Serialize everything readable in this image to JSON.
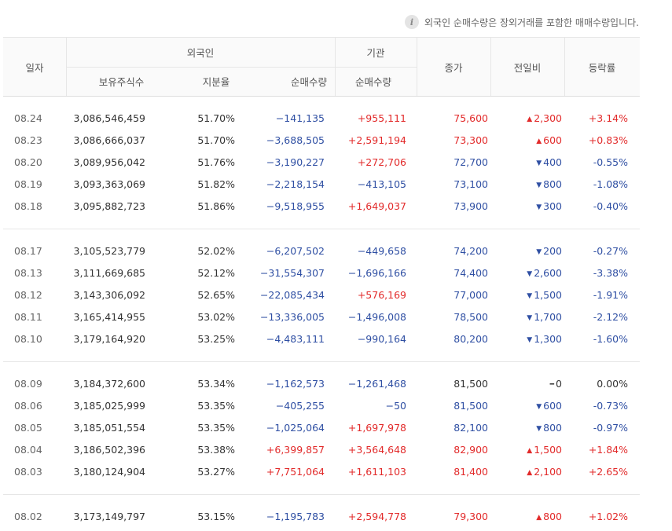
{
  "notice": {
    "icon": "info-icon",
    "text": "외국인 순매수량은 장외거래를 포함한 매매수량입니다."
  },
  "header": {
    "date": "일자",
    "foreign": "외국인",
    "institution": "기관",
    "holdings": "보유주식수",
    "ratio": "지분율",
    "foreign_net": "순매수량",
    "inst_net": "순매수량",
    "close": "종가",
    "change": "전일비",
    "rate": "등락률"
  },
  "colors": {
    "up": "#e22a2a",
    "down": "#2f4fa3",
    "flat": "#333333"
  },
  "rows": [
    {
      "date": "08.24",
      "holdings": "3,086,546,459",
      "ratio": "51.70%",
      "foreign_net": "−141,135",
      "foreign_dir": "down",
      "inst_net": "+955,111",
      "inst_dir": "up",
      "close": "75,600",
      "close_dir": "up",
      "arrow": "▲",
      "change": "2,300",
      "change_dir": "up",
      "rate": "+3.14%",
      "rate_dir": "up"
    },
    {
      "date": "08.23",
      "holdings": "3,086,666,037",
      "ratio": "51.70%",
      "foreign_net": "−3,688,505",
      "foreign_dir": "down",
      "inst_net": "+2,591,194",
      "inst_dir": "up",
      "close": "73,300",
      "close_dir": "up",
      "arrow": "▲",
      "change": "600",
      "change_dir": "up",
      "rate": "+0.83%",
      "rate_dir": "up"
    },
    {
      "date": "08.20",
      "holdings": "3,089,956,042",
      "ratio": "51.76%",
      "foreign_net": "−3,190,227",
      "foreign_dir": "down",
      "inst_net": "+272,706",
      "inst_dir": "up",
      "close": "72,700",
      "close_dir": "down",
      "arrow": "▼",
      "change": "400",
      "change_dir": "down",
      "rate": "-0.55%",
      "rate_dir": "down"
    },
    {
      "date": "08.19",
      "holdings": "3,093,363,069",
      "ratio": "51.82%",
      "foreign_net": "−2,218,154",
      "foreign_dir": "down",
      "inst_net": "−413,105",
      "inst_dir": "down",
      "close": "73,100",
      "close_dir": "down",
      "arrow": "▼",
      "change": "800",
      "change_dir": "down",
      "rate": "-1.08%",
      "rate_dir": "down"
    },
    {
      "date": "08.18",
      "holdings": "3,095,882,723",
      "ratio": "51.86%",
      "foreign_net": "−9,518,955",
      "foreign_dir": "down",
      "inst_net": "+1,649,037",
      "inst_dir": "up",
      "close": "73,900",
      "close_dir": "down",
      "arrow": "▼",
      "change": "300",
      "change_dir": "down",
      "rate": "-0.40%",
      "rate_dir": "down"
    },
    {
      "date": "08.17",
      "holdings": "3,105,523,779",
      "ratio": "52.02%",
      "foreign_net": "−6,207,502",
      "foreign_dir": "down",
      "inst_net": "−449,658",
      "inst_dir": "down",
      "close": "74,200",
      "close_dir": "down",
      "arrow": "▼",
      "change": "200",
      "change_dir": "down",
      "rate": "-0.27%",
      "rate_dir": "down"
    },
    {
      "date": "08.13",
      "holdings": "3,111,669,685",
      "ratio": "52.12%",
      "foreign_net": "−31,554,307",
      "foreign_dir": "down",
      "inst_net": "−1,696,166",
      "inst_dir": "down",
      "close": "74,400",
      "close_dir": "down",
      "arrow": "▼",
      "change": "2,600",
      "change_dir": "down",
      "rate": "-3.38%",
      "rate_dir": "down"
    },
    {
      "date": "08.12",
      "holdings": "3,143,306,092",
      "ratio": "52.65%",
      "foreign_net": "−22,085,434",
      "foreign_dir": "down",
      "inst_net": "+576,169",
      "inst_dir": "up",
      "close": "77,000",
      "close_dir": "down",
      "arrow": "▼",
      "change": "1,500",
      "change_dir": "down",
      "rate": "-1.91%",
      "rate_dir": "down"
    },
    {
      "date": "08.11",
      "holdings": "3,165,414,955",
      "ratio": "53.02%",
      "foreign_net": "−13,336,005",
      "foreign_dir": "down",
      "inst_net": "−1,496,008",
      "inst_dir": "down",
      "close": "78,500",
      "close_dir": "down",
      "arrow": "▼",
      "change": "1,700",
      "change_dir": "down",
      "rate": "-2.12%",
      "rate_dir": "down"
    },
    {
      "date": "08.10",
      "holdings": "3,179,164,920",
      "ratio": "53.25%",
      "foreign_net": "−4,483,111",
      "foreign_dir": "down",
      "inst_net": "−990,164",
      "inst_dir": "down",
      "close": "80,200",
      "close_dir": "down",
      "arrow": "▼",
      "change": "1,300",
      "change_dir": "down",
      "rate": "-1.60%",
      "rate_dir": "down"
    },
    {
      "date": "08.09",
      "holdings": "3,184,372,600",
      "ratio": "53.34%",
      "foreign_net": "−1,162,573",
      "foreign_dir": "down",
      "inst_net": "−1,261,468",
      "inst_dir": "down",
      "close": "81,500",
      "close_dir": "flat",
      "arrow": "━",
      "change": "0",
      "change_dir": "flat",
      "rate": "0.00%",
      "rate_dir": "flat"
    },
    {
      "date": "08.06",
      "holdings": "3,185,025,999",
      "ratio": "53.35%",
      "foreign_net": "−405,255",
      "foreign_dir": "down",
      "inst_net": "−50",
      "inst_dir": "down",
      "close": "81,500",
      "close_dir": "down",
      "arrow": "▼",
      "change": "600",
      "change_dir": "down",
      "rate": "-0.73%",
      "rate_dir": "down"
    },
    {
      "date": "08.05",
      "holdings": "3,185,051,554",
      "ratio": "53.35%",
      "foreign_net": "−1,025,064",
      "foreign_dir": "down",
      "inst_net": "+1,697,978",
      "inst_dir": "up",
      "close": "82,100",
      "close_dir": "down",
      "arrow": "▼",
      "change": "800",
      "change_dir": "down",
      "rate": "-0.97%",
      "rate_dir": "down"
    },
    {
      "date": "08.04",
      "holdings": "3,186,502,396",
      "ratio": "53.38%",
      "foreign_net": "+6,399,857",
      "foreign_dir": "up",
      "inst_net": "+3,564,648",
      "inst_dir": "up",
      "close": "82,900",
      "close_dir": "up",
      "arrow": "▲",
      "change": "1,500",
      "change_dir": "up",
      "rate": "+1.84%",
      "rate_dir": "up"
    },
    {
      "date": "08.03",
      "holdings": "3,180,124,904",
      "ratio": "53.27%",
      "foreign_net": "+7,751,064",
      "foreign_dir": "up",
      "inst_net": "+1,611,103",
      "inst_dir": "up",
      "close": "81,400",
      "close_dir": "up",
      "arrow": "▲",
      "change": "2,100",
      "change_dir": "up",
      "rate": "+2.65%",
      "rate_dir": "up"
    },
    {
      "date": "08.02",
      "holdings": "3,173,149,797",
      "ratio": "53.15%",
      "foreign_net": "−1,195,783",
      "foreign_dir": "down",
      "inst_net": "+2,594,778",
      "inst_dir": "up",
      "close": "79,300",
      "close_dir": "up",
      "arrow": "▲",
      "change": "800",
      "change_dir": "up",
      "rate": "+1.02%",
      "rate_dir": "up"
    }
  ]
}
